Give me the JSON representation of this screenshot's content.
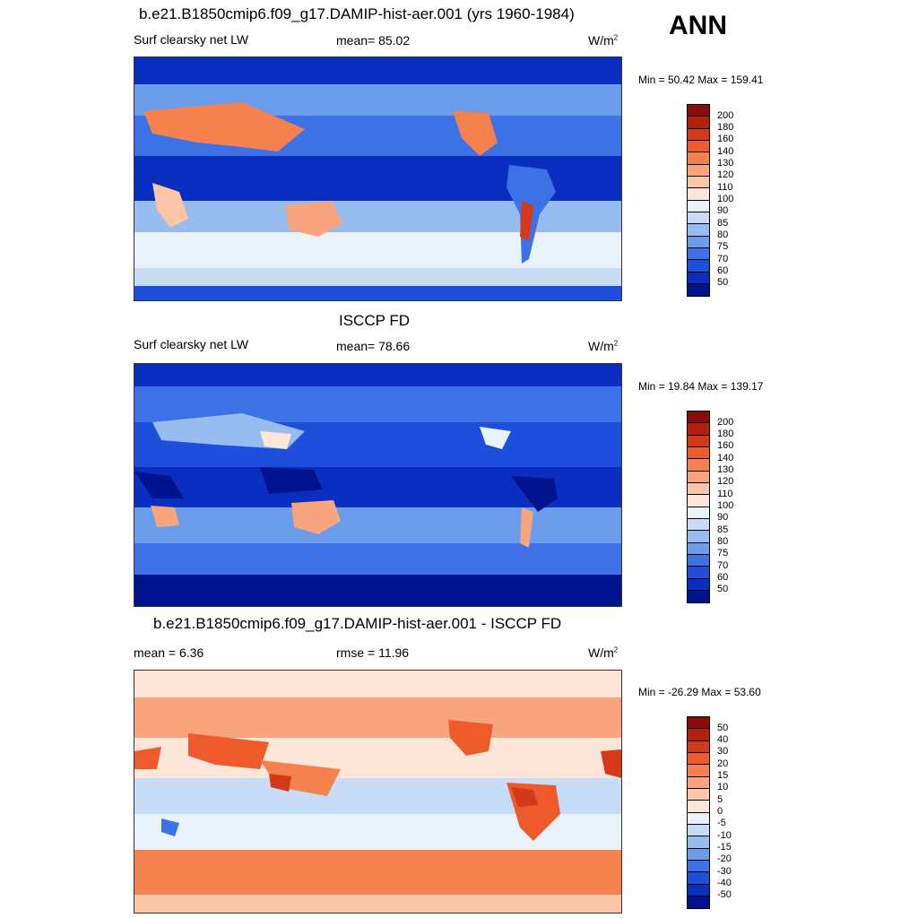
{
  "season": "ANN",
  "panels": [
    {
      "title": "b.e21.B1850cmip6.f09_g17.DAMIP-hist-aer.001 (yrs 1960-1984)",
      "left_label": "Surf clearsky net LW",
      "center_label": "mean=  85.02",
      "units": "W/m",
      "units_sup": "2",
      "minmax": "Min =  50.42 Max = 159.41"
    },
    {
      "title": "ISCCP FD",
      "left_label": "Surf clearsky net LW",
      "center_label": "mean=  78.66",
      "units": "W/m",
      "units_sup": "2",
      "minmax": "Min =  19.84 Max = 139.17"
    },
    {
      "title": "b.e21.B1850cmip6.f09_g17.DAMIP-hist-aer.001 - ISCCP FD",
      "left_label": "mean =   6.36",
      "center_label": "rmse =  11.96",
      "units": "W/m",
      "units_sup": "2",
      "minmax": "Min = -26.29 Max =  53.60"
    }
  ],
  "chart_data": [
    {
      "type": "heatmap",
      "title": "b.e21.B1850cmip6.f09_g17.DAMIP-hist-aer.001 (yrs 1960-1984)",
      "variable": "Surf clearsky net LW",
      "mean": 85.02,
      "min": 50.42,
      "max": 159.41,
      "units": "W/m2",
      "colorbar_levels": [
        200,
        180,
        160,
        140,
        130,
        120,
        110,
        100,
        90,
        85,
        80,
        75,
        70,
        60,
        50
      ],
      "colorbar_colors": [
        "#8b0a0a",
        "#b3200e",
        "#d6391a",
        "#ee5a2a",
        "#f5814f",
        "#f8a47c",
        "#fbc6a8",
        "#fde6d7",
        "#e9f1fb",
        "#c7dcf6",
        "#97bcef",
        "#6b9cea",
        "#3d72e6",
        "#1d4fdc",
        "#0a2fc0",
        "#00138f"
      ]
    },
    {
      "type": "heatmap",
      "title": "ISCCP FD",
      "variable": "Surf clearsky net LW",
      "mean": 78.66,
      "min": 19.84,
      "max": 139.17,
      "units": "W/m2",
      "colorbar_levels": [
        200,
        180,
        160,
        140,
        130,
        120,
        110,
        100,
        90,
        85,
        80,
        75,
        70,
        60,
        50
      ],
      "colorbar_colors": [
        "#8b0a0a",
        "#b3200e",
        "#d6391a",
        "#ee5a2a",
        "#f5814f",
        "#f8a47c",
        "#fbc6a8",
        "#fde6d7",
        "#e9f1fb",
        "#c7dcf6",
        "#97bcef",
        "#6b9cea",
        "#3d72e6",
        "#1d4fdc",
        "#0a2fc0",
        "#00138f"
      ]
    },
    {
      "type": "heatmap",
      "title": "b.e21.B1850cmip6.f09_g17.DAMIP-hist-aer.001 - ISCCP FD",
      "mean": 6.36,
      "rmse": 11.96,
      "min": -26.29,
      "max": 53.6,
      "units": "W/m2",
      "colorbar_levels": [
        50,
        40,
        30,
        20,
        15,
        10,
        5,
        0,
        -5,
        -10,
        -15,
        -20,
        -30,
        -40,
        -50
      ],
      "colorbar_colors": [
        "#8b0a0a",
        "#b3200e",
        "#d6391a",
        "#ee5a2a",
        "#f5814f",
        "#f8a47c",
        "#fbc6a8",
        "#fde6d7",
        "#e9f1fb",
        "#c7dcf6",
        "#97bcef",
        "#6b9cea",
        "#3d72e6",
        "#1d4fdc",
        "#0a2fc0",
        "#00138f"
      ]
    }
  ]
}
